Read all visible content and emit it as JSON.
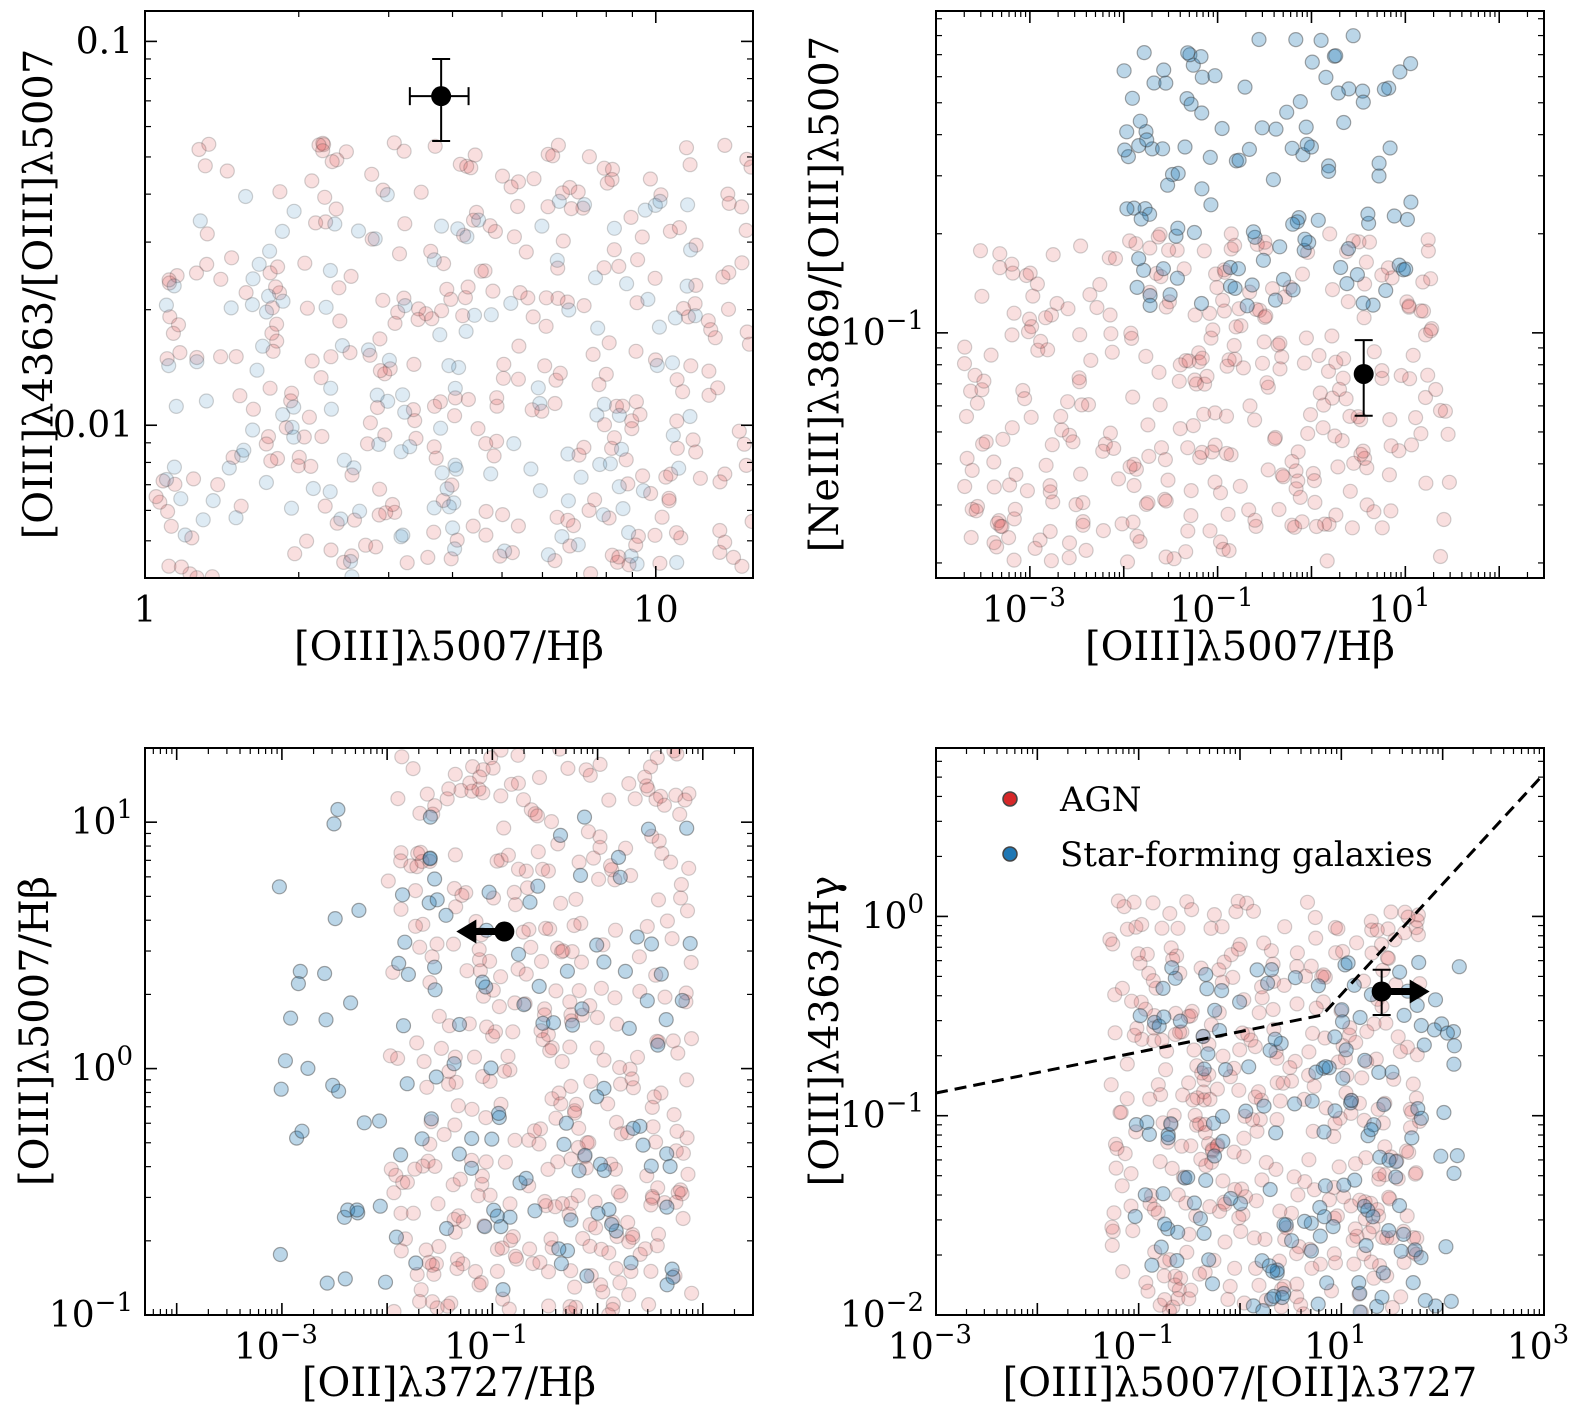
{
  "colors": {
    "agn": "#d62728",
    "sf": "#1f77b4",
    "point_edge": "#444444",
    "measurement": "#000000"
  },
  "legend": {
    "agn_label": "AGN",
    "sf_label": "Star-forming galaxies"
  },
  "chart_data": [
    {
      "type": "scatter",
      "panel": "top-left",
      "xscale": "log",
      "yscale": "log",
      "xlim": [
        1,
        15.5
      ],
      "ylim": [
        0.004,
        0.12
      ],
      "xlabel": "[OIII]λ5007/Hβ",
      "ylabel": "[OIII]λ4363/[OIII]λ5007",
      "xticks": [
        {
          "v": 1,
          "label": "1"
        },
        {
          "v": 10,
          "label": "10"
        }
      ],
      "yticks": [
        {
          "v": 0.01,
          "label": "0.01"
        },
        {
          "v": 0.1,
          "label": "0.1"
        }
      ],
      "measurement": {
        "x": 3.8,
        "y": 0.072,
        "xerr": [
          0.5,
          0.5
        ],
        "yerr": [
          0.017,
          0.018
        ],
        "limit": "none"
      },
      "series": [
        {
          "name": "AGN",
          "x_range": [
            1.05,
            15.5
          ],
          "y_range": [
            0.004,
            0.055
          ],
          "n": 320,
          "alpha": 0.15,
          "seed": 11
        },
        {
          "name": "Star-forming galaxies",
          "x_range": [
            1.1,
            12
          ],
          "y_range": [
            0.004,
            0.04
          ],
          "n": 140,
          "alpha": 0.15,
          "seed": 12
        }
      ]
    },
    {
      "type": "scatter",
      "panel": "top-right",
      "xscale": "log",
      "yscale": "log",
      "xlim": [
        0.0001,
        300
      ],
      "ylim": [
        0.018,
        0.95
      ],
      "xlabel": "[OIII]λ5007/Hβ",
      "ylabel": "[NeIII]λ3869/[OIII]λ5007",
      "xticks": [
        {
          "v": 0.001,
          "label": "10",
          "exp": "−3"
        },
        {
          "v": 0.1,
          "label": "10",
          "exp": "−1"
        },
        {
          "v": 10,
          "label": "10",
          "exp": "1"
        }
      ],
      "yticks": [
        {
          "v": 0.1,
          "label": "10",
          "exp": "−1"
        }
      ],
      "measurement": {
        "x": 3.6,
        "y": 0.075,
        "xerr": [
          0,
          0
        ],
        "yerr": [
          0.019,
          0.02
        ],
        "limit": "none"
      },
      "series": [
        {
          "name": "AGN",
          "x_range": [
            0.0002,
            30
          ],
          "y_range": [
            0.02,
            0.2
          ],
          "n": 330,
          "alpha": 0.15,
          "seed": 21
        },
        {
          "name": "Star-forming galaxies",
          "x_range": [
            0.01,
            12
          ],
          "y_range": [
            0.12,
            0.8
          ],
          "n": 120,
          "alpha": 0.3,
          "seed": 22
        }
      ]
    },
    {
      "type": "scatter",
      "panel": "bottom-left",
      "xscale": "log",
      "yscale": "log",
      "xlim": [
        5e-05,
        30
      ],
      "ylim": [
        0.1,
        20
      ],
      "xlabel": "[OII]λ3727/Hβ",
      "ylabel": "[OIII]λ5007/Hβ",
      "xticks": [
        {
          "v": 0.001,
          "label": "10",
          "exp": "−3"
        },
        {
          "v": 0.1,
          "label": "10",
          "exp": "−1"
        }
      ],
      "yticks": [
        {
          "v": 0.1,
          "label": "10",
          "exp": "−1"
        },
        {
          "v": 1,
          "label": "10",
          "exp": "0"
        },
        {
          "v": 10,
          "label": "10",
          "exp": "1"
        }
      ],
      "measurement": {
        "x": 0.13,
        "y": 3.6,
        "xerr": [
          0,
          0
        ],
        "yerr": [
          0,
          0
        ],
        "limit": "upper-x"
      },
      "series": [
        {
          "name": "AGN",
          "x_range": [
            0.01,
            8
          ],
          "y_range": [
            0.1,
            20
          ],
          "n": 380,
          "alpha": 0.15,
          "seed": 31
        },
        {
          "name": "Star-forming galaxies",
          "x_range": [
            0.0009,
            8
          ],
          "y_range": [
            0.12,
            12
          ],
          "n": 130,
          "alpha": 0.3,
          "seed": 32
        }
      ]
    },
    {
      "type": "scatter",
      "panel": "bottom-right",
      "xscale": "log",
      "yscale": "log",
      "xlim": [
        0.001,
        1000
      ],
      "ylim": [
        0.01,
        7
      ],
      "xlabel": "[OIII]λ5007/[OII]λ3727",
      "ylabel": "[OIII]λ4363/Hγ",
      "xticks": [
        {
          "v": 0.001,
          "label": "10",
          "exp": "−3"
        },
        {
          "v": 0.1,
          "label": "10",
          "exp": "−1"
        },
        {
          "v": 10,
          "label": "10",
          "exp": "1"
        },
        {
          "v": 1000,
          "label": "10",
          "exp": "3"
        }
      ],
      "yticks": [
        {
          "v": 0.01,
          "label": "10",
          "exp": "−2"
        },
        {
          "v": 0.1,
          "label": "10",
          "exp": "−1"
        },
        {
          "v": 1,
          "label": "10",
          "exp": "0"
        }
      ],
      "measurement": {
        "x": 25,
        "y": 0.42,
        "xerr": [
          0,
          0
        ],
        "yerr": [
          0.1,
          0.12
        ],
        "limit": "lower-x"
      },
      "dashed_line": [
        {
          "x": 0.001,
          "y": 0.13
        },
        {
          "x": 6.5,
          "y": 0.32
        },
        {
          "x": 1000,
          "y": 5.2
        }
      ],
      "legend_position": "top-left",
      "series": [
        {
          "name": "AGN",
          "x_range": [
            0.05,
            60
          ],
          "y_range": [
            0.01,
            1.2
          ],
          "n": 380,
          "alpha": 0.15,
          "seed": 41
        },
        {
          "name": "Star-forming galaxies",
          "x_range": [
            0.08,
            150
          ],
          "y_range": [
            0.01,
            0.6
          ],
          "n": 160,
          "alpha": 0.3,
          "seed": 42
        }
      ]
    }
  ]
}
